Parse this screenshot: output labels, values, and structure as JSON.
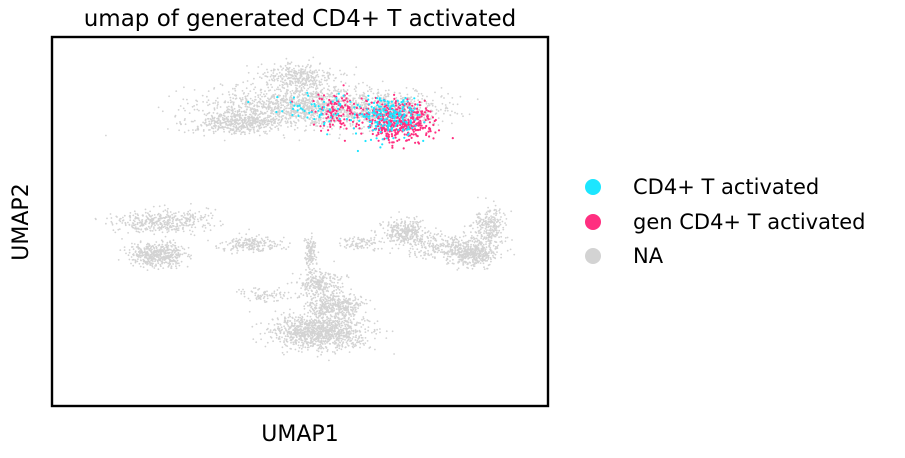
{
  "chart_data": {
    "type": "scatter",
    "title": "umap of generated CD4+ T activated",
    "xlabel": "UMAP1",
    "ylabel": "UMAP2",
    "xlim": [
      0,
      10
    ],
    "ylim": [
      0,
      10
    ],
    "grid": false,
    "ticks": false,
    "legend_placement": "outside-right",
    "series": [
      {
        "name": "CD4+ T activated",
        "color": "#1ce6ff",
        "key": "cd4"
      },
      {
        "name": "gen CD4+ T activated",
        "color": "#ff2f80",
        "key": "gen"
      },
      {
        "name": "NA",
        "color": "#d3d3d3",
        "key": "na"
      }
    ],
    "clusters": {
      "na": [
        {
          "cx": 5.2,
          "cy": 8.1,
          "sx": 2.1,
          "sy": 0.55,
          "n": 1500
        },
        {
          "cx": 4.95,
          "cy": 8.9,
          "sx": 0.75,
          "sy": 0.4,
          "n": 350
        },
        {
          "cx": 3.7,
          "cy": 7.65,
          "sx": 0.9,
          "sy": 0.28,
          "n": 400
        },
        {
          "cx": 7.0,
          "cy": 8.0,
          "sx": 0.9,
          "sy": 0.45,
          "n": 400
        },
        {
          "cx": 2.2,
          "cy": 5.0,
          "sx": 0.95,
          "sy": 0.32,
          "n": 400
        },
        {
          "cx": 2.15,
          "cy": 4.1,
          "sx": 0.55,
          "sy": 0.3,
          "n": 500
        },
        {
          "cx": 4.0,
          "cy": 4.4,
          "sx": 0.6,
          "sy": 0.2,
          "n": 200
        },
        {
          "cx": 5.4,
          "cy": 2.0,
          "sx": 0.95,
          "sy": 0.45,
          "n": 1100
        },
        {
          "cx": 5.7,
          "cy": 2.7,
          "sx": 0.55,
          "sy": 0.35,
          "n": 400
        },
        {
          "cx": 5.4,
          "cy": 3.3,
          "sx": 0.45,
          "sy": 0.4,
          "n": 250
        },
        {
          "cx": 5.2,
          "cy": 4.1,
          "sx": 0.12,
          "sy": 0.5,
          "n": 120
        },
        {
          "cx": 4.3,
          "cy": 3.0,
          "sx": 0.6,
          "sy": 0.18,
          "n": 80
        },
        {
          "cx": 7.1,
          "cy": 4.7,
          "sx": 0.45,
          "sy": 0.35,
          "n": 300
        },
        {
          "cx": 8.0,
          "cy": 4.3,
          "sx": 0.9,
          "sy": 0.35,
          "n": 300
        },
        {
          "cx": 8.5,
          "cy": 4.1,
          "sx": 0.45,
          "sy": 0.3,
          "n": 350
        },
        {
          "cx": 8.8,
          "cy": 4.9,
          "sx": 0.35,
          "sy": 0.5,
          "n": 250
        },
        {
          "cx": 6.2,
          "cy": 4.4,
          "sx": 0.4,
          "sy": 0.18,
          "n": 80
        }
      ],
      "gen": [
        {
          "cx": 7.0,
          "cy": 7.7,
          "sx": 0.65,
          "sy": 0.5,
          "n": 420
        },
        {
          "cx": 5.8,
          "cy": 8.0,
          "sx": 0.7,
          "sy": 0.55,
          "n": 120
        }
      ],
      "cd4": [
        {
          "cx": 6.8,
          "cy": 7.8,
          "sx": 0.7,
          "sy": 0.55,
          "n": 200
        },
        {
          "cx": 5.3,
          "cy": 8.0,
          "sx": 0.9,
          "sy": 0.55,
          "n": 60
        }
      ]
    }
  }
}
